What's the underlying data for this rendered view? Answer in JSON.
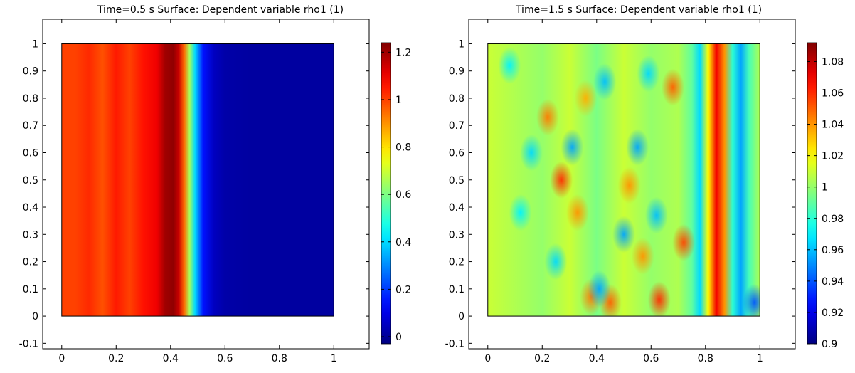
{
  "chart_data": [
    {
      "type": "heatmap",
      "title": "Time=0.5 s   Surface: Dependent variable rho1 (1)",
      "xlabel": "",
      "ylabel": "",
      "xlim": [
        -0.07,
        1.13
      ],
      "ylim": [
        -0.12,
        1.09
      ],
      "x_ticks": [
        "0",
        "0.2",
        "0.4",
        "0.6",
        "0.8",
        "1"
      ],
      "x_tick_values": [
        0,
        0.2,
        0.4,
        0.6,
        0.8,
        1
      ],
      "y_ticks": [
        "-0.1",
        "0",
        "0.1",
        "0.2",
        "0.3",
        "0.4",
        "0.5",
        "0.6",
        "0.7",
        "0.8",
        "0.9",
        "1"
      ],
      "y_tick_values": [
        -0.1,
        0,
        0.1,
        0.2,
        0.3,
        0.4,
        0.5,
        0.6,
        0.7,
        0.8,
        0.9,
        1
      ],
      "colorbar": {
        "min": -0.03,
        "max": 1.24,
        "ticks": [
          "0",
          "0.2",
          "0.4",
          "0.6",
          "0.8",
          "1",
          "1.2"
        ],
        "tick_values": [
          0,
          0.2,
          0.4,
          0.6,
          0.8,
          1,
          1.2
        ]
      },
      "profile_x": [
        0,
        0.05,
        0.1,
        0.15,
        0.2,
        0.25,
        0.3,
        0.35,
        0.38,
        0.41,
        0.43,
        0.45,
        0.47,
        0.49,
        0.52,
        0.56,
        0.6,
        0.7,
        0.8,
        0.9,
        1
      ],
      "profile_values": [
        1.0,
        1.0,
        1.03,
        0.98,
        1.05,
        1.0,
        1.06,
        1.1,
        1.2,
        1.22,
        1.15,
        0.95,
        0.65,
        0.4,
        0.15,
        0.05,
        0.02,
        0.01,
        0.01,
        0.01,
        0.01
      ]
    },
    {
      "type": "heatmap",
      "title": "Time=1.5 s   Surface: Dependent variable rho1 (1)",
      "xlabel": "",
      "ylabel": "",
      "xlim": [
        -0.07,
        1.13
      ],
      "ylim": [
        -0.12,
        1.09
      ],
      "x_ticks": [
        "0",
        "0.2",
        "0.4",
        "0.6",
        "0.8",
        "1"
      ],
      "x_tick_values": [
        0,
        0.2,
        0.4,
        0.6,
        0.8,
        1
      ],
      "y_ticks": [
        "-0.1",
        "0",
        "0.1",
        "0.2",
        "0.3",
        "0.4",
        "0.5",
        "0.6",
        "0.7",
        "0.8",
        "0.9",
        "1"
      ],
      "y_tick_values": [
        -0.1,
        0,
        0.1,
        0.2,
        0.3,
        0.4,
        0.5,
        0.6,
        0.7,
        0.8,
        0.9,
        1
      ],
      "colorbar": {
        "min": 0.9,
        "max": 1.092,
        "ticks": [
          "0.9",
          "0.92",
          "0.94",
          "0.96",
          "0.98",
          "1",
          "1.02",
          "1.04",
          "1.06",
          "1.08"
        ],
        "tick_values": [
          0.9,
          0.92,
          0.94,
          0.96,
          0.98,
          1,
          1.02,
          1.04,
          1.06,
          1.08
        ]
      },
      "profile_x": [
        0,
        0.1,
        0.2,
        0.3,
        0.4,
        0.5,
        0.6,
        0.7,
        0.75,
        0.78,
        0.81,
        0.84,
        0.87,
        0.9,
        0.93,
        0.96,
        1
      ],
      "profile_values": [
        1.01,
        1.005,
        1.0,
        1.01,
        0.995,
        1.01,
        1.0,
        1.005,
        0.99,
        0.965,
        1.02,
        1.07,
        1.04,
        0.98,
        0.955,
        0.985,
        1.005
      ],
      "hot_spots": [
        {
          "x": 0.27,
          "y": 0.5,
          "v": 1.06
        },
        {
          "x": 0.22,
          "y": 0.73,
          "v": 1.045
        },
        {
          "x": 0.45,
          "y": 0.05,
          "v": 1.05
        },
        {
          "x": 0.63,
          "y": 0.06,
          "v": 1.06
        },
        {
          "x": 0.38,
          "y": 0.07,
          "v": 1.045
        },
        {
          "x": 0.72,
          "y": 0.27,
          "v": 1.055
        },
        {
          "x": 0.68,
          "y": 0.84,
          "v": 1.05
        },
        {
          "x": 0.52,
          "y": 0.48,
          "v": 1.04
        },
        {
          "x": 0.33,
          "y": 0.38,
          "v": 1.04
        },
        {
          "x": 0.36,
          "y": 0.8,
          "v": 1.035
        },
        {
          "x": 0.57,
          "y": 0.22,
          "v": 1.04
        }
      ],
      "cold_spots": [
        {
          "x": 0.31,
          "y": 0.62,
          "v": 0.955
        },
        {
          "x": 0.16,
          "y": 0.6,
          "v": 0.965
        },
        {
          "x": 0.41,
          "y": 0.1,
          "v": 0.955
        },
        {
          "x": 0.55,
          "y": 0.62,
          "v": 0.955
        },
        {
          "x": 0.43,
          "y": 0.86,
          "v": 0.96
        },
        {
          "x": 0.59,
          "y": 0.89,
          "v": 0.965
        },
        {
          "x": 0.08,
          "y": 0.92,
          "v": 0.97
        },
        {
          "x": 0.62,
          "y": 0.37,
          "v": 0.96
        },
        {
          "x": 0.25,
          "y": 0.2,
          "v": 0.965
        },
        {
          "x": 0.5,
          "y": 0.3,
          "v": 0.955
        },
        {
          "x": 0.12,
          "y": 0.38,
          "v": 0.97
        },
        {
          "x": 0.98,
          "y": 0.05,
          "v": 0.94
        }
      ]
    }
  ]
}
